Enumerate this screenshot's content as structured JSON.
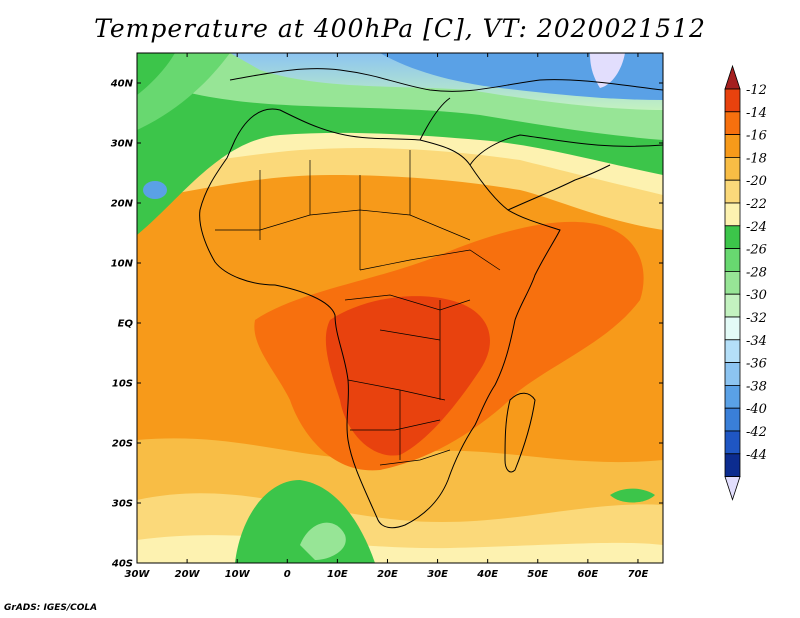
{
  "title": "Temperature at 400hPa [C], VT: 2020021512",
  "footer": "GrADS: IGES/COLA",
  "chart_data": {
    "type": "heatmap",
    "title": "Temperature at 400hPa [C], VT: 2020021512",
    "xlim": [
      -30,
      75
    ],
    "ylim": [
      -40,
      45
    ],
    "x_ticks": [
      {
        "value": -30,
        "label": "30W"
      },
      {
        "value": -20,
        "label": "20W"
      },
      {
        "value": -10,
        "label": "10W"
      },
      {
        "value": 0,
        "label": "0"
      },
      {
        "value": 10,
        "label": "10E"
      },
      {
        "value": 20,
        "label": "20E"
      },
      {
        "value": 30,
        "label": "30E"
      },
      {
        "value": 40,
        "label": "40E"
      },
      {
        "value": 50,
        "label": "50E"
      },
      {
        "value": 60,
        "label": "60E"
      },
      {
        "value": 70,
        "label": "70E"
      }
    ],
    "y_ticks": [
      {
        "value": 40,
        "label": "40N"
      },
      {
        "value": 30,
        "label": "30N"
      },
      {
        "value": 20,
        "label": "20N"
      },
      {
        "value": 10,
        "label": "10N"
      },
      {
        "value": 0,
        "label": "EQ"
      },
      {
        "value": -10,
        "label": "10S"
      },
      {
        "value": -20,
        "label": "20S"
      },
      {
        "value": -30,
        "label": "30S"
      },
      {
        "value": -40,
        "label": "40S"
      }
    ],
    "colorbar": {
      "labels": [
        "-12",
        "-14",
        "-16",
        "-18",
        "-20",
        "-22",
        "-24",
        "-26",
        "-28",
        "-30",
        "-32",
        "-34",
        "-36",
        "-38",
        "-40",
        "-42",
        "-44"
      ],
      "colors": [
        "#a51f1f",
        "#e8420e",
        "#f7700e",
        "#f79a1a",
        "#f8bd45",
        "#fbd97a",
        "#fdf2b0",
        "#3cc54a",
        "#68d870",
        "#97e596",
        "#c3f2c0",
        "#e3fbf7",
        "#b4dff8",
        "#8cc4f1",
        "#5aa1e6",
        "#3a7fd8",
        "#1f56c3",
        "#0c2c8f",
        "#e2defd"
      ]
    }
  }
}
